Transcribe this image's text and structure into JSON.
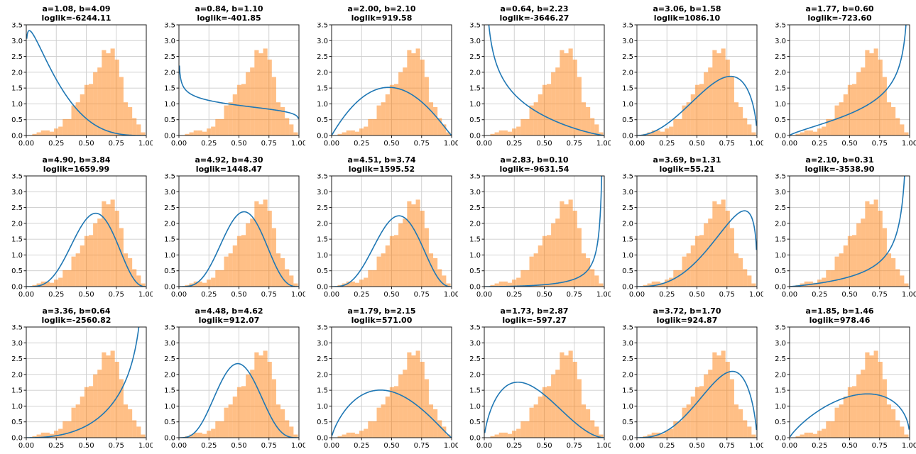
{
  "chart_data": {
    "type": "histogram-with-line-overlay-grid",
    "rows": 3,
    "cols": 6,
    "curve_model": "beta_pdf",
    "xlim": [
      0,
      1
    ],
    "ylim": [
      0,
      3.5
    ],
    "grid": true,
    "xticks": {
      "values": [
        0,
        0.25,
        0.5,
        0.75,
        1.0
      ],
      "labels": [
        "0.00",
        "0.25",
        "0.50",
        "0.75",
        "1.00"
      ]
    },
    "yticks": {
      "values": [
        0,
        0.5,
        1.0,
        1.5,
        2.0,
        2.5,
        3.0,
        3.5
      ],
      "labels": [
        "0.0",
        "0.5",
        "1.0",
        "1.5",
        "2.0",
        "2.5",
        "3.0",
        "3.5"
      ]
    },
    "colors": {
      "histogram": "#ff7f0e",
      "histogram_opacity": 0.5,
      "curve": "#1f77b4",
      "gridline": "#cccccc",
      "spine": "#1a1a1a",
      "text": "#000000"
    },
    "histogram": {
      "bin_start": 0.05,
      "bin_width": 0.0362,
      "heights": [
        0.05,
        0.1,
        0.16,
        0.16,
        0.12,
        0.22,
        0.28,
        0.52,
        0.52,
        0.95,
        1.05,
        1.3,
        1.6,
        1.63,
        2.0,
        2.15,
        2.7,
        2.6,
        2.75,
        2.4,
        1.85,
        1.05,
        0.9,
        0.55,
        0.35,
        0.1
      ]
    },
    "subplots": [
      {
        "a": 1.08,
        "b": 4.09,
        "loglik": -6244.11,
        "title_line1": "a=1.08, b=4.09",
        "title_line2": "loglik=-6244.11"
      },
      {
        "a": 0.84,
        "b": 1.1,
        "loglik": -401.85,
        "title_line1": "a=0.84, b=1.10",
        "title_line2": "loglik=-401.85"
      },
      {
        "a": 2.0,
        "b": 2.1,
        "loglik": 919.58,
        "title_line1": "a=2.00, b=2.10",
        "title_line2": "loglik=919.58"
      },
      {
        "a": 0.64,
        "b": 2.23,
        "loglik": -3646.27,
        "title_line1": "a=0.64, b=2.23",
        "title_line2": "loglik=-3646.27"
      },
      {
        "a": 3.06,
        "b": 1.58,
        "loglik": 1086.1,
        "title_line1": "a=3.06, b=1.58",
        "title_line2": "loglik=1086.10"
      },
      {
        "a": 1.77,
        "b": 0.6,
        "loglik": -723.6,
        "title_line1": "a=1.77, b=0.60",
        "title_line2": "loglik=-723.60"
      },
      {
        "a": 4.9,
        "b": 3.84,
        "loglik": 1659.99,
        "title_line1": "a=4.90, b=3.84",
        "title_line2": "loglik=1659.99"
      },
      {
        "a": 4.92,
        "b": 4.3,
        "loglik": 1448.47,
        "title_line1": "a=4.92, b=4.30",
        "title_line2": "loglik=1448.47"
      },
      {
        "a": 4.51,
        "b": 3.74,
        "loglik": 1595.52,
        "title_line1": "a=4.51, b=3.74",
        "title_line2": "loglik=1595.52"
      },
      {
        "a": 2.83,
        "b": 0.1,
        "loglik": -9631.54,
        "title_line1": "a=2.83, b=0.10",
        "title_line2": "loglik=-9631.54"
      },
      {
        "a": 3.69,
        "b": 1.31,
        "loglik": 55.21,
        "title_line1": "a=3.69, b=1.31",
        "title_line2": "loglik=55.21"
      },
      {
        "a": 2.1,
        "b": 0.31,
        "loglik": -3538.9,
        "title_line1": "a=2.10, b=0.31",
        "title_line2": "loglik=-3538.90"
      },
      {
        "a": 3.36,
        "b": 0.64,
        "loglik": -2560.82,
        "title_line1": "a=3.36, b=0.64",
        "title_line2": "loglik=-2560.82"
      },
      {
        "a": 4.48,
        "b": 4.62,
        "loglik": 912.07,
        "title_line1": "a=4.48, b=4.62",
        "title_line2": "loglik=912.07"
      },
      {
        "a": 1.79,
        "b": 2.15,
        "loglik": 571.0,
        "title_line1": "a=1.79, b=2.15",
        "title_line2": "loglik=571.00"
      },
      {
        "a": 1.73,
        "b": 2.87,
        "loglik": -597.27,
        "title_line1": "a=1.73, b=2.87",
        "title_line2": "loglik=-597.27"
      },
      {
        "a": 3.72,
        "b": 1.7,
        "loglik": 924.87,
        "title_line1": "a=3.72, b=1.70",
        "title_line2": "loglik=924.87"
      },
      {
        "a": 1.85,
        "b": 1.46,
        "loglik": 978.46,
        "title_line1": "a=1.85, b=1.46",
        "title_line2": "loglik=978.46"
      }
    ]
  }
}
